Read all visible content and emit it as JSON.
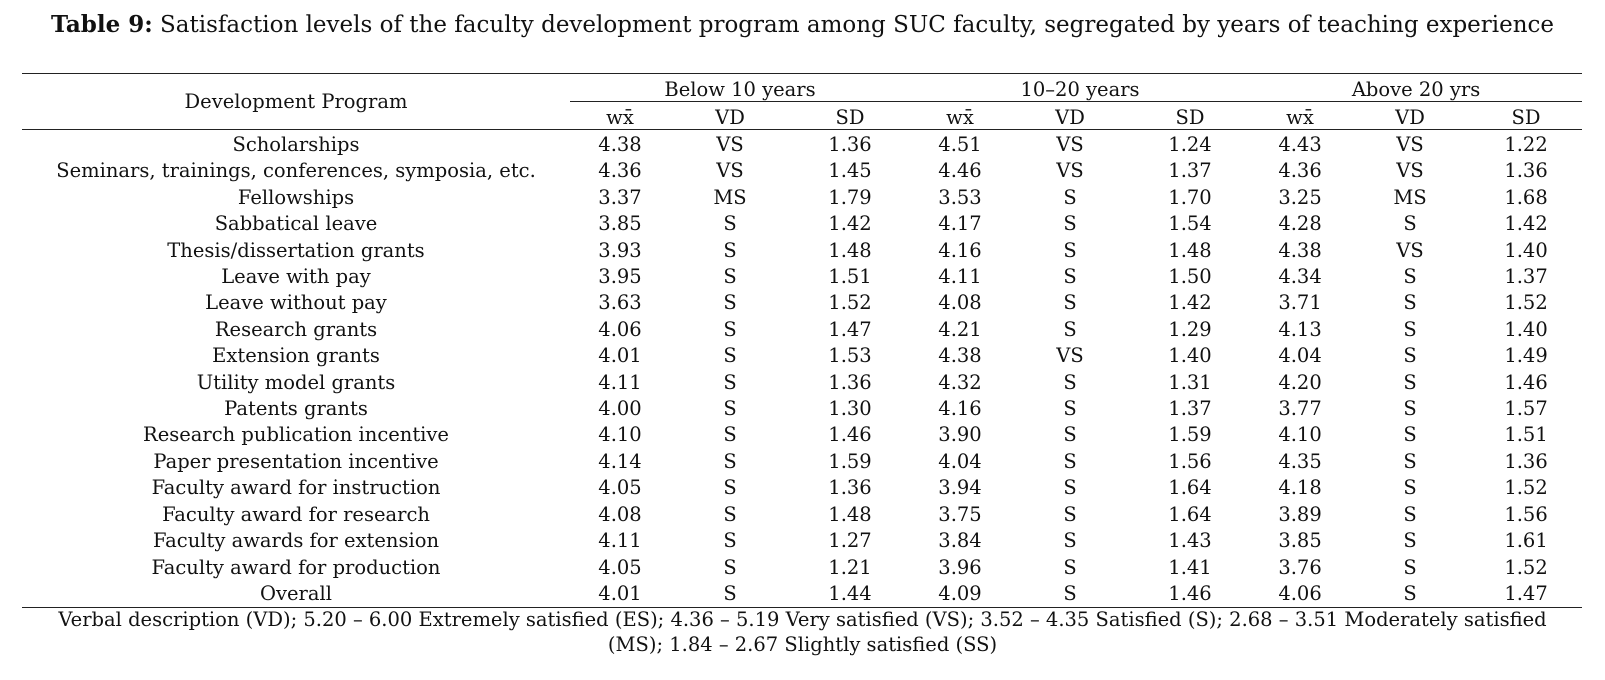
{
  "caption": {
    "label": "Table 9:",
    "text": " Satisfaction levels of the faculty development program among SUC faculty, segregated by years of teaching experience"
  },
  "table": {
    "row_header": "Development Program",
    "groups": [
      "Below 10 years",
      "10–20 years",
      "Above 20 yrs"
    ],
    "subheaders": [
      "wx̄",
      "VD",
      "SD"
    ],
    "rows": [
      {
        "program": "Scholarships",
        "values": [
          "4.38",
          "VS",
          "1.36",
          "4.51",
          "VS",
          "1.24",
          "4.43",
          "VS",
          "1.22"
        ]
      },
      {
        "program": "Seminars, trainings, conferences, symposia, etc.",
        "values": [
          "4.36",
          "VS",
          "1.45",
          "4.46",
          "VS",
          "1.37",
          "4.36",
          "VS",
          "1.36"
        ]
      },
      {
        "program": "Fellowships",
        "values": [
          "3.37",
          "MS",
          "1.79",
          "3.53",
          "S",
          "1.70",
          "3.25",
          "MS",
          "1.68"
        ]
      },
      {
        "program": "Sabbatical leave",
        "values": [
          "3.85",
          "S",
          "1.42",
          "4.17",
          "S",
          "1.54",
          "4.28",
          "S",
          "1.42"
        ]
      },
      {
        "program": "Thesis/dissertation grants",
        "values": [
          "3.93",
          "S",
          "1.48",
          "4.16",
          "S",
          "1.48",
          "4.38",
          "VS",
          "1.40"
        ]
      },
      {
        "program": "Leave with pay",
        "values": [
          "3.95",
          "S",
          "1.51",
          "4.11",
          "S",
          "1.50",
          "4.34",
          "S",
          "1.37"
        ]
      },
      {
        "program": "Leave without pay",
        "values": [
          "3.63",
          "S",
          "1.52",
          "4.08",
          "S",
          "1.42",
          "3.71",
          "S",
          "1.52"
        ]
      },
      {
        "program": "Research grants",
        "values": [
          "4.06",
          "S",
          "1.47",
          "4.21",
          "S",
          "1.29",
          "4.13",
          "S",
          "1.40"
        ]
      },
      {
        "program": "Extension grants",
        "values": [
          "4.01",
          "S",
          "1.53",
          "4.38",
          "VS",
          "1.40",
          "4.04",
          "S",
          "1.49"
        ]
      },
      {
        "program": "Utility model grants",
        "values": [
          "4.11",
          "S",
          "1.36",
          "4.32",
          "S",
          "1.31",
          "4.20",
          "S",
          "1.46"
        ]
      },
      {
        "program": "Patents grants",
        "values": [
          "4.00",
          "S",
          "1.30",
          "4.16",
          "S",
          "1.37",
          "3.77",
          "S",
          "1.57"
        ]
      },
      {
        "program": "Research publication incentive",
        "values": [
          "4.10",
          "S",
          "1.46",
          "3.90",
          "S",
          "1.59",
          "4.10",
          "S",
          "1.51"
        ]
      },
      {
        "program": "Paper presentation incentive",
        "values": [
          "4.14",
          "S",
          "1.59",
          "4.04",
          "S",
          "1.56",
          "4.35",
          "S",
          "1.36"
        ]
      },
      {
        "program": "Faculty award for instruction",
        "values": [
          "4.05",
          "S",
          "1.36",
          "3.94",
          "S",
          "1.64",
          "4.18",
          "S",
          "1.52"
        ]
      },
      {
        "program": "Faculty award for research",
        "values": [
          "4.08",
          "S",
          "1.48",
          "3.75",
          "S",
          "1.64",
          "3.89",
          "S",
          "1.56"
        ]
      },
      {
        "program": "Faculty awards for extension",
        "values": [
          "4.11",
          "S",
          "1.27",
          "3.84",
          "S",
          "1.43",
          "3.85",
          "S",
          "1.61"
        ]
      },
      {
        "program": "Faculty award for production",
        "values": [
          "4.05",
          "S",
          "1.21",
          "3.96",
          "S",
          "1.41",
          "3.76",
          "S",
          "1.52"
        ]
      },
      {
        "program": "Overall",
        "values": [
          "4.01",
          "S",
          "1.44",
          "4.09",
          "S",
          "1.46",
          "4.06",
          "S",
          "1.47"
        ]
      }
    ]
  },
  "footnote": "Verbal description (VD); 5.20 – 6.00 Extremely satisfied (ES); 4.36 – 5.19 Very satisfied (VS); 3.52 – 4.35 Satisfied (S); 2.68 – 3.51 Moderately satisfied (MS); 1.84 – 2.67 Slightly satisfied (SS)"
}
